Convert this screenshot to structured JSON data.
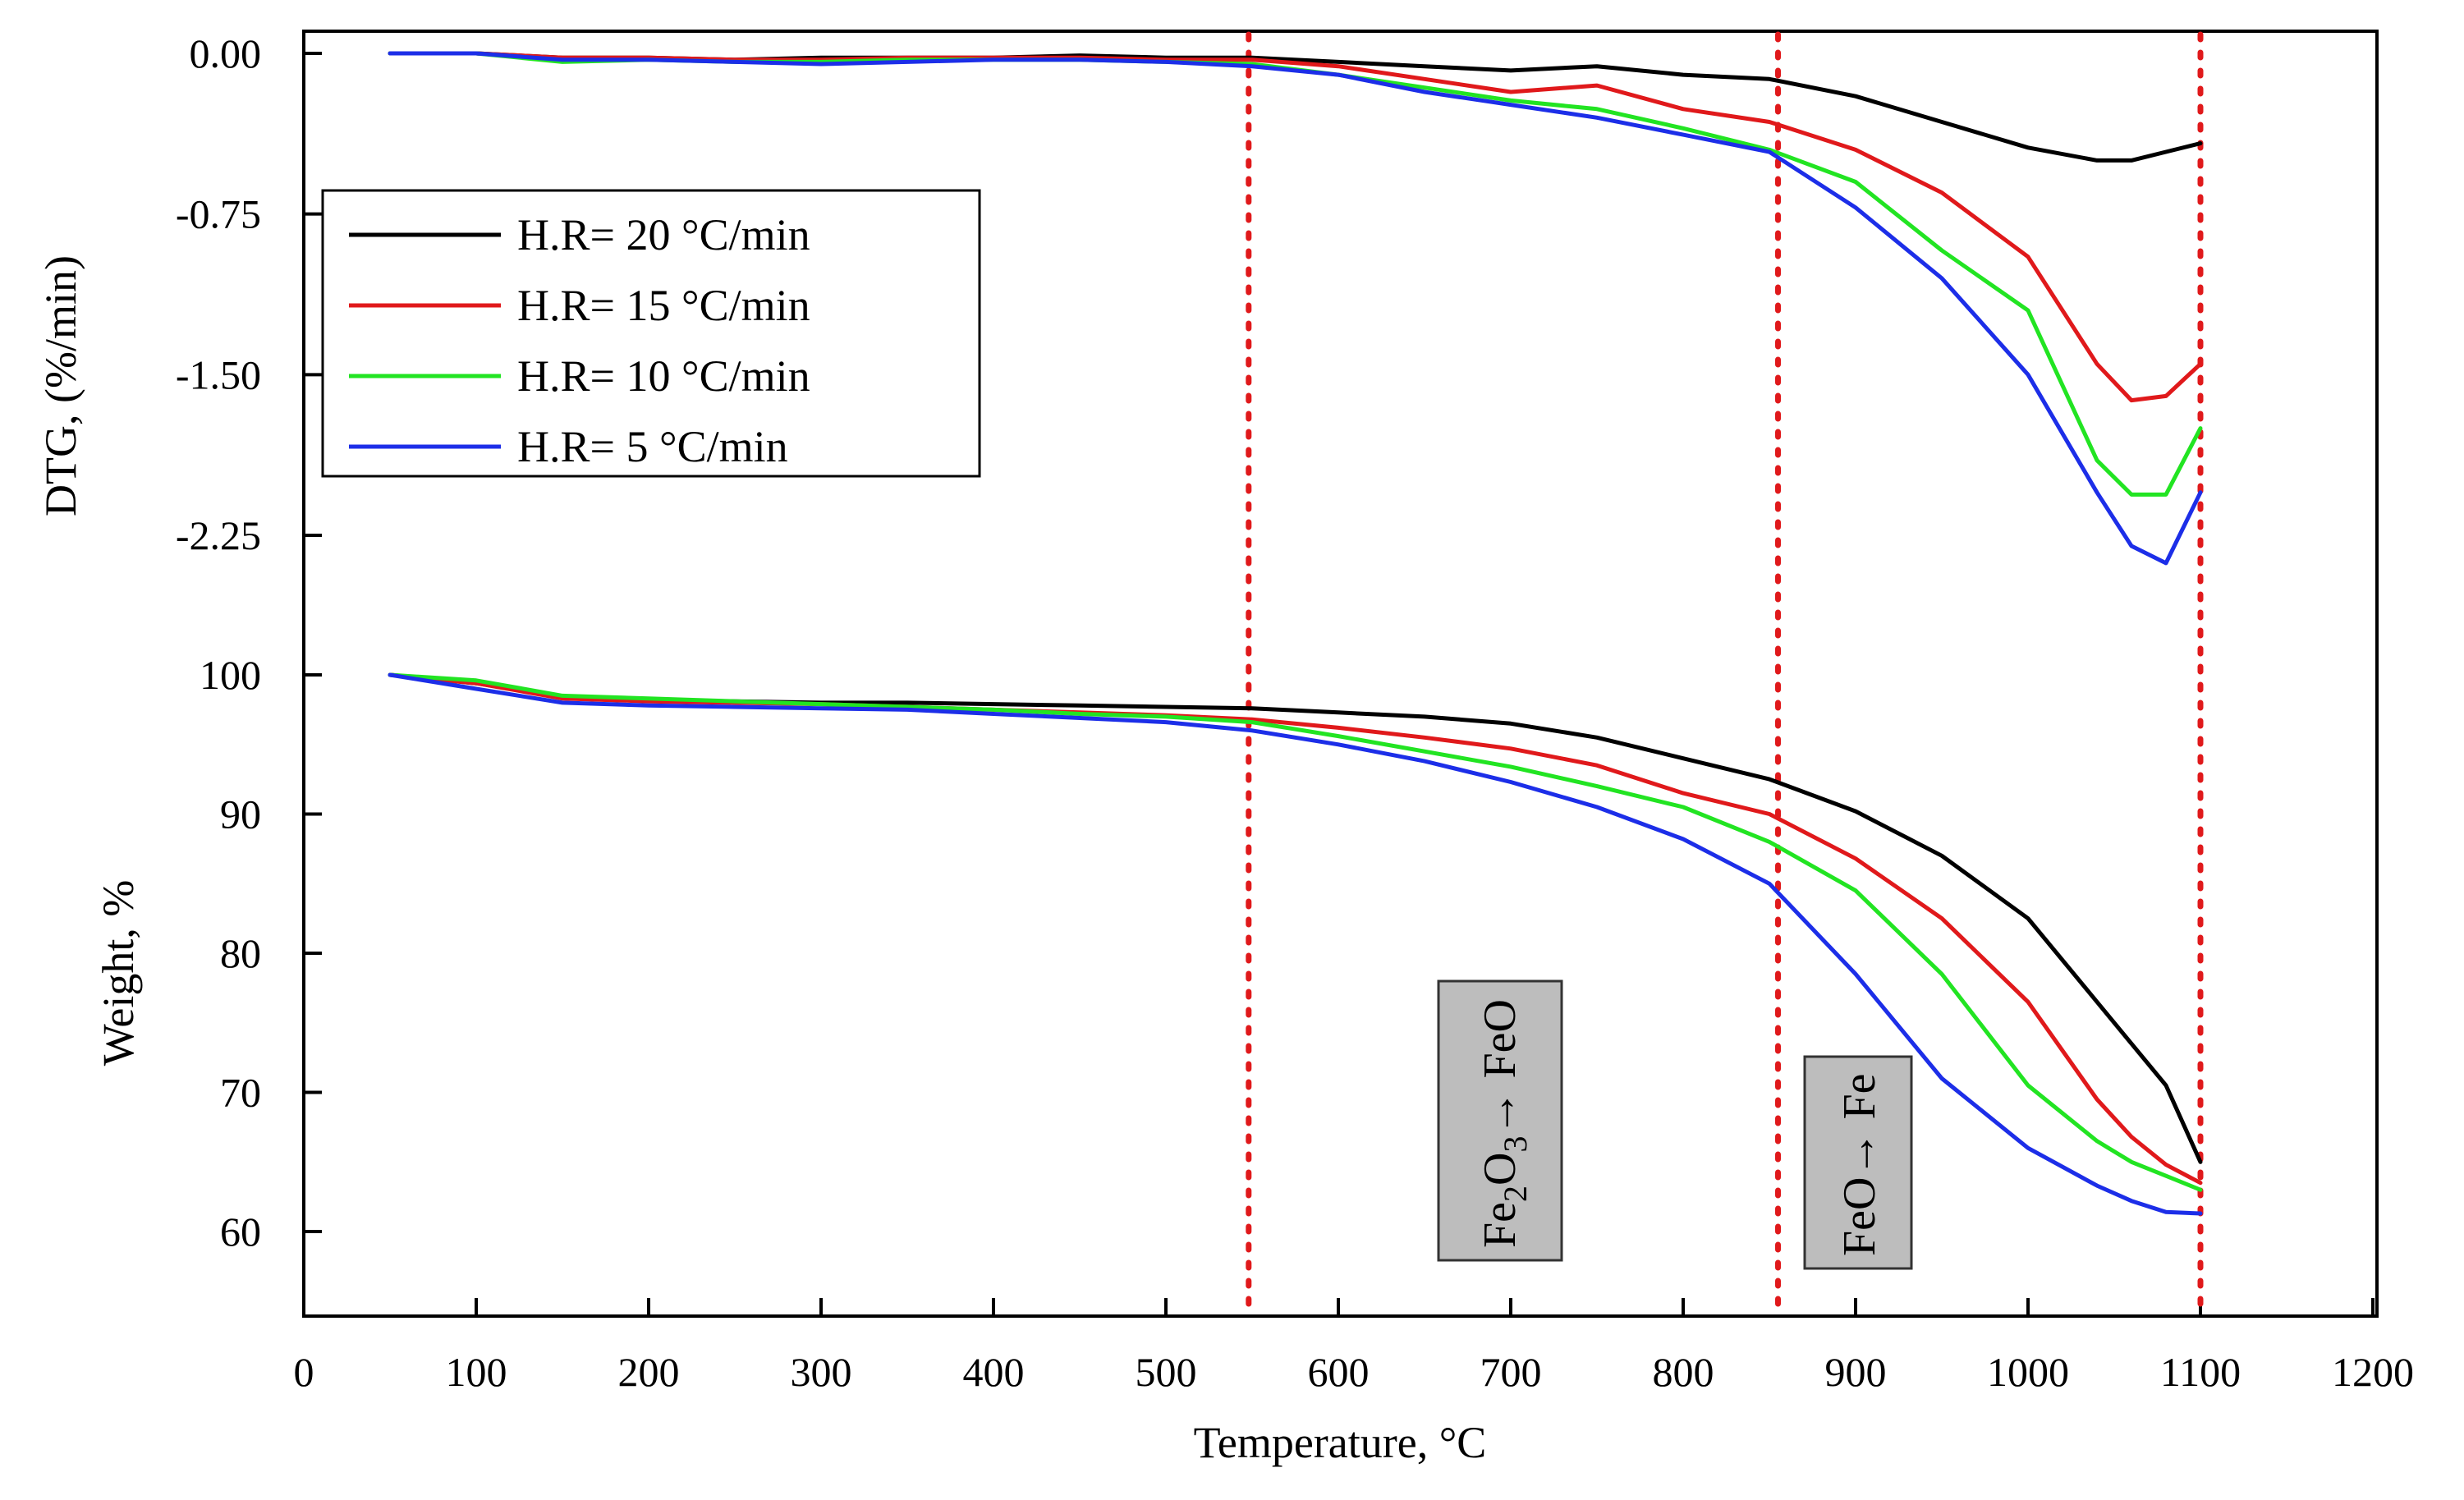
{
  "chart_data": {
    "type": "line",
    "x": [
      50,
      100,
      150,
      200,
      250,
      300,
      350,
      400,
      450,
      500,
      550,
      600,
      650,
      700,
      750,
      800,
      850,
      900,
      950,
      1000,
      1040,
      1060,
      1080,
      1100
    ],
    "xlabel": "Temperature, °C",
    "xlim": [
      0,
      1200
    ],
    "xticks": [
      "0",
      "100",
      "200",
      "300",
      "400",
      "500",
      "600",
      "700",
      "800",
      "900",
      "1000",
      "1100",
      "1200"
    ],
    "dtg": {
      "ylabel": "DTG, (%/min)",
      "ylim": [
        -2.7,
        0.1
      ],
      "yticks": [
        "0.00",
        "-0.75",
        "-1.50",
        "-2.25"
      ],
      "series": [
        {
          "name": "H.R= 20 °C/min",
          "color": "#000000",
          "values": [
            0,
            0,
            -0.02,
            -0.02,
            -0.03,
            -0.02,
            -0.02,
            -0.02,
            -0.01,
            -0.02,
            -0.02,
            -0.04,
            -0.06,
            -0.08,
            -0.06,
            -0.1,
            -0.12,
            -0.2,
            -0.32,
            -0.44,
            -0.5,
            -0.5,
            -0.46,
            -0.42
          ]
        },
        {
          "name": "H.R= 15 °C/min",
          "color": "#e0191b",
          "values": [
            0,
            0,
            -0.02,
            -0.02,
            -0.03,
            -0.03,
            -0.02,
            -0.02,
            -0.02,
            -0.03,
            -0.03,
            -0.06,
            -0.12,
            -0.18,
            -0.15,
            -0.26,
            -0.32,
            -0.45,
            -0.65,
            -0.95,
            -1.45,
            -1.62,
            -1.6,
            -1.45
          ]
        },
        {
          "name": "H.R= 10 °C/min",
          "color": "#22e422",
          "values": [
            0,
            0,
            -0.04,
            -0.03,
            -0.04,
            -0.04,
            -0.03,
            -0.03,
            -0.03,
            -0.04,
            -0.05,
            -0.1,
            -0.16,
            -0.22,
            -0.26,
            -0.35,
            -0.45,
            -0.6,
            -0.92,
            -1.2,
            -1.9,
            -2.06,
            -2.06,
            -1.75
          ]
        },
        {
          "name": "H.R= 5 °C/min",
          "color": "#1c2ee8",
          "values": [
            0,
            0,
            -0.03,
            -0.03,
            -0.04,
            -0.05,
            -0.04,
            -0.03,
            -0.03,
            -0.04,
            -0.06,
            -0.1,
            -0.18,
            -0.24,
            -0.3,
            -0.38,
            -0.46,
            -0.72,
            -1.05,
            -1.5,
            -2.05,
            -2.3,
            -2.38,
            -2.05
          ]
        }
      ]
    },
    "weight": {
      "ylabel": "Weight, %",
      "ylim": [
        55,
        100
      ],
      "yticks": [
        "100",
        "90",
        "80",
        "70",
        "60"
      ],
      "series": [
        {
          "name": "H.R= 20 °C/min",
          "color": "#000000",
          "values": [
            100,
            99.4,
            98.4,
            98.2,
            98.1,
            98,
            98,
            97.9,
            97.8,
            97.7,
            97.6,
            97.3,
            97,
            96.5,
            95.5,
            94,
            92.5,
            90.2,
            87,
            82.5,
            76.5,
            73.5,
            70.5,
            65
          ]
        },
        {
          "name": "H.R= 15 °C/min",
          "color": "#e0191b",
          "values": [
            100,
            99.4,
            98.3,
            98.1,
            98,
            97.9,
            97.7,
            97.5,
            97.3,
            97.1,
            96.8,
            96.2,
            95.5,
            94.7,
            93.5,
            91.5,
            90,
            86.8,
            82.5,
            76.5,
            69.5,
            66.8,
            64.8,
            63.5
          ]
        },
        {
          "name": "H.R= 10 °C/min",
          "color": "#22e422",
          "values": [
            100,
            99.6,
            98.5,
            98.3,
            98.1,
            97.9,
            97.7,
            97.5,
            97.2,
            97,
            96.6,
            95.6,
            94.5,
            93.4,
            92,
            90.5,
            88,
            84.5,
            78.5,
            70.5,
            66.5,
            65,
            64,
            63
          ]
        },
        {
          "name": "H.R= 5 °C/min",
          "color": "#1c2ee8",
          "values": [
            100,
            99,
            98,
            97.8,
            97.7,
            97.6,
            97.5,
            97.2,
            96.9,
            96.6,
            96,
            95,
            93.8,
            92.3,
            90.5,
            88.2,
            85,
            78.5,
            71,
            66,
            63.3,
            62.2,
            61.4,
            61.3
          ]
        }
      ]
    },
    "reference_lines_x": [
      548,
      855,
      1100
    ],
    "annotations": [
      {
        "label_main": "Fe",
        "label_sub": "2",
        "label_rest1": "O",
        "label_sub2": "3",
        "label_arrow": "→ FeO"
      },
      {
        "label_main": "FeO",
        "label_arrow": "→ Fe"
      }
    ],
    "legend": {
      "position": "left-middle",
      "entries": [
        "H.R= 20 °C/min",
        "H.R= 15 °C/min",
        "H.R= 10 °C/min",
        "H.R= 5 °C/min"
      ]
    }
  }
}
